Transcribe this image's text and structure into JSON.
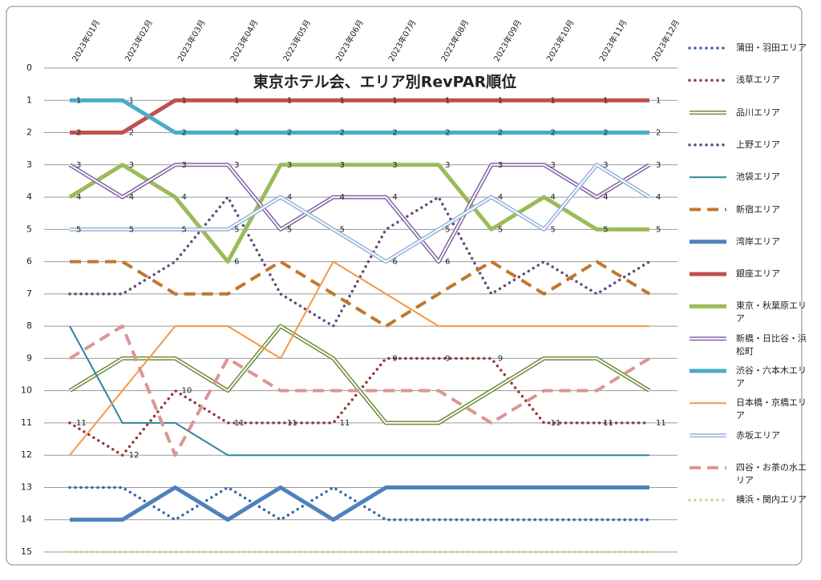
{
  "chart_data": {
    "type": "line",
    "title": "東京ホテル会、エリア別RevPAR順位",
    "categories": [
      "2023年01月",
      "2023年02月",
      "2023年03月",
      "2023年04月",
      "2023年05月",
      "2023年06月",
      "2023年07月",
      "2023年08月",
      "2023年09月",
      "2023年10月",
      "2023年11月",
      "2023年12月"
    ],
    "ylim": [
      0,
      15
    ],
    "yticks": [
      0,
      1,
      2,
      3,
      4,
      5,
      6,
      7,
      8,
      9,
      10,
      11,
      12,
      13,
      14,
      15
    ],
    "y_reversed": true,
    "grid": true,
    "legend": "right",
    "series": [
      {
        "name": "蒲田・羽田エリア",
        "color": "#3b64a6",
        "style": "dotted",
        "labels": false,
        "values": [
          13,
          13,
          14,
          13,
          14,
          13,
          14,
          14,
          14,
          14,
          14,
          14
        ]
      },
      {
        "name": "浅草エリア",
        "color": "#953735",
        "style": "dotted",
        "labels": true,
        "values": [
          11,
          12,
          10,
          11,
          11,
          11,
          9,
          9,
          9,
          11,
          11,
          11
        ]
      },
      {
        "name": "品川エリア",
        "color": "#6e8b36",
        "style": "double",
        "labels": false,
        "values": [
          10,
          9,
          9,
          10,
          8,
          9,
          11,
          11,
          10,
          9,
          9,
          10
        ]
      },
      {
        "name": "上野エリア",
        "color": "#604a7b",
        "style": "dotted",
        "labels": false,
        "values": [
          7,
          7,
          6,
          4,
          7,
          8,
          5,
          4,
          7,
          6,
          7,
          6
        ]
      },
      {
        "name": "池袋エリア",
        "color": "#31859c",
        "style": "thin",
        "labels": false,
        "values": [
          8,
          11,
          11,
          12,
          12,
          12,
          12,
          12,
          12,
          12,
          12,
          12
        ]
      },
      {
        "name": "新宿エリア",
        "color": "#c0772c",
        "style": "dashed",
        "labels": false,
        "values": [
          6,
          6,
          7,
          7,
          6,
          7,
          8,
          7,
          6,
          7,
          6,
          7
        ]
      },
      {
        "name": "湾岸エリア",
        "color": "#4f81bd",
        "style": "thick",
        "labels": false,
        "values": [
          14,
          14,
          13,
          14,
          13,
          14,
          13,
          13,
          13,
          13,
          13,
          13
        ]
      },
      {
        "name": "銀座エリア",
        "color": "#c0504d",
        "style": "thick",
        "labels": true,
        "values": [
          2,
          2,
          1,
          1,
          1,
          1,
          1,
          1,
          1,
          1,
          1,
          1
        ]
      },
      {
        "name": "東京・秋葉原エリア",
        "color": "#9bbb59",
        "style": "thick",
        "labels": true,
        "values": [
          4,
          3,
          4,
          6,
          3,
          3,
          3,
          3,
          5,
          4,
          5,
          5
        ]
      },
      {
        "name": "新橋・日比谷・浜松町",
        "color": "#8064a2",
        "style": "double",
        "labels": true,
        "values": [
          3,
          4,
          3,
          3,
          5,
          4,
          4,
          6,
          3,
          3,
          4,
          3
        ]
      },
      {
        "name": "渋谷・六本木エリア",
        "color": "#4bacc6",
        "style": "thick",
        "labels": true,
        "values": [
          1,
          1,
          2,
          2,
          2,
          2,
          2,
          2,
          2,
          2,
          2,
          2
        ]
      },
      {
        "name": "日本橋・京橋エリア",
        "color": "#f79646",
        "style": "thin",
        "labels": false,
        "values": [
          12,
          10,
          8,
          8,
          9,
          6,
          7,
          8,
          8,
          8,
          8,
          8
        ]
      },
      {
        "name": "赤坂エリア",
        "color": "#95b3d7",
        "style": "double",
        "labels": true,
        "values": [
          5,
          5,
          5,
          5,
          4,
          5,
          6,
          5,
          4,
          5,
          3,
          4
        ]
      },
      {
        "name": "四谷・お茶の水エリア",
        "color": "#d99694",
        "style": "dashed",
        "labels": false,
        "values": [
          9,
          8,
          12,
          9,
          10,
          10,
          10,
          10,
          11,
          10,
          10,
          9
        ]
      },
      {
        "name": "横浜・関内エリア",
        "color": "#c3d69b",
        "style": "dotted",
        "labels": false,
        "values": [
          15,
          15,
          15,
          15,
          15,
          15,
          15,
          15,
          15,
          15,
          15,
          15
        ]
      }
    ]
  }
}
